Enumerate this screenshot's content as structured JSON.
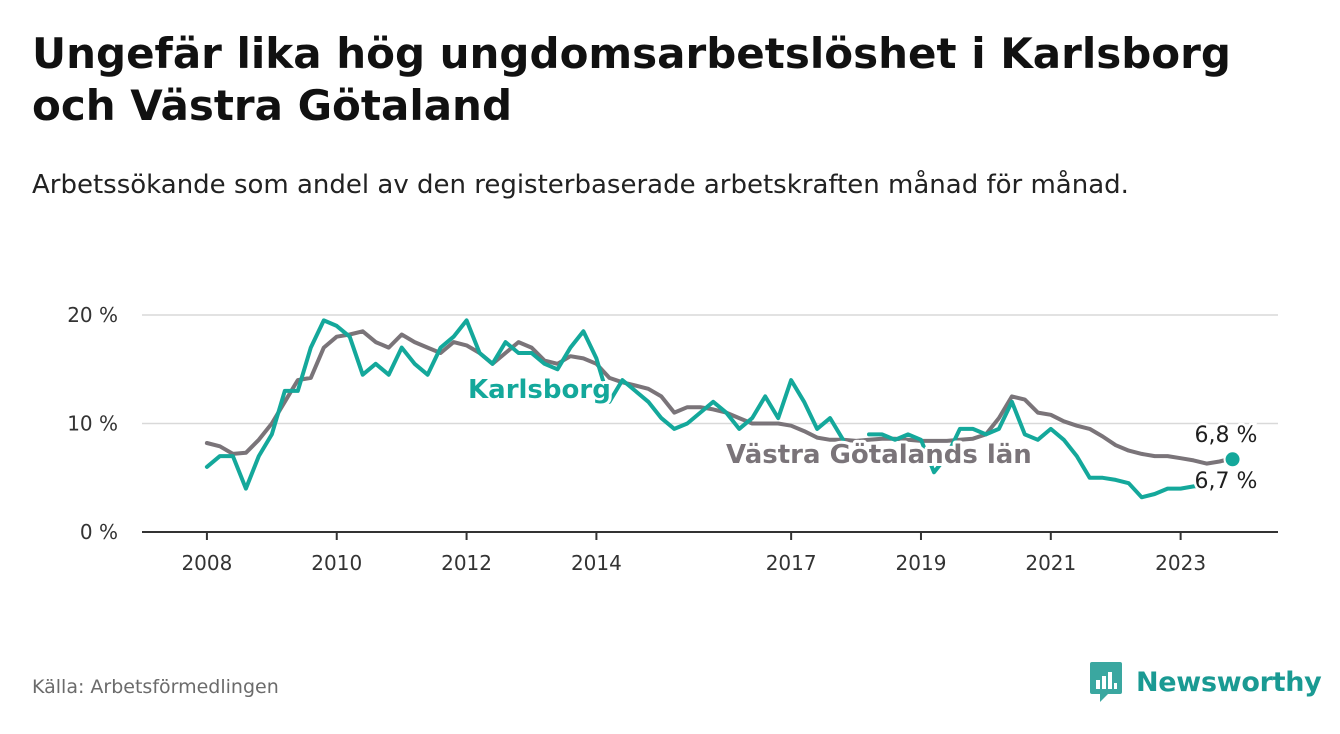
{
  "header": {
    "title": "Ungefär lika hög ungdomsarbetslöshet i Karlsborg och Västra Götaland",
    "subtitle": "Arbetssökande som andel av den registerbaserade arbetskraften månad för månad."
  },
  "footer": {
    "source": "Källa: Arbetsförmedlingen",
    "brand": "Newsworthy"
  },
  "colors": {
    "karlsborg": "#14a89b",
    "vastra": "#7a7479",
    "grid": "#d9d9d9",
    "axis": "#333333"
  },
  "chart_data": {
    "type": "line",
    "title": "Ungefär lika hög ungdomsarbetslöshet i Karlsborg och Västra Götaland",
    "xlabel": "",
    "ylabel": "",
    "xlim": [
      2007.0,
      2024.5
    ],
    "ylim": [
      0,
      20
    ],
    "y_ticks": [
      0,
      10,
      20
    ],
    "y_tick_labels": [
      "0 %",
      "10 %",
      "20 %"
    ],
    "x_ticks": [
      2008,
      2010,
      2012,
      2014,
      2017,
      2019,
      2021,
      2023
    ],
    "x_tick_labels": [
      "2008",
      "2010",
      "2012",
      "2014",
      "2017",
      "2019",
      "2021",
      "2023"
    ],
    "grid": true,
    "legend": "inline labels",
    "series": [
      {
        "name": "Västra Götalands län",
        "label": "Västra Götalands län",
        "color": "#7a7479",
        "end_label": "6,8 %",
        "x": [
          2008.0,
          2008.2,
          2008.4,
          2008.6,
          2008.8,
          2009.0,
          2009.2,
          2009.4,
          2009.6,
          2009.8,
          2010.0,
          2010.2,
          2010.4,
          2010.6,
          2010.8,
          2011.0,
          2011.2,
          2011.4,
          2011.6,
          2011.8,
          2012.0,
          2012.2,
          2012.4,
          2012.6,
          2012.8,
          2013.0,
          2013.2,
          2013.4,
          2013.6,
          2013.8,
          2014.0,
          2014.2,
          2014.4,
          2014.6,
          2014.8,
          2015.0,
          2015.2,
          2015.4,
          2015.6,
          2015.8,
          2016.0,
          2016.2,
          2016.4,
          2016.6,
          2016.8,
          2017.0,
          2017.2,
          2017.4,
          2017.6,
          2017.8,
          2018.0,
          2018.2,
          2018.4,
          2018.6,
          2018.8,
          2019.0,
          2019.2,
          2019.4,
          2019.6,
          2019.8,
          2020.0,
          2020.2,
          2020.4,
          2020.6,
          2020.8,
          2021.0,
          2021.2,
          2021.4,
          2021.6,
          2021.8,
          2022.0,
          2022.2,
          2022.4,
          2022.6,
          2022.8,
          2023.0,
          2023.2,
          2023.4,
          2023.6,
          2023.8
        ],
        "values": [
          8.2,
          7.9,
          7.2,
          7.3,
          8.5,
          10.0,
          12.0,
          14.0,
          14.2,
          17.0,
          18.0,
          18.2,
          18.5,
          17.5,
          17.0,
          18.2,
          17.5,
          17.0,
          16.5,
          17.5,
          17.2,
          16.5,
          15.5,
          16.5,
          17.5,
          17.0,
          15.8,
          15.5,
          16.2,
          16.0,
          15.5,
          14.2,
          13.8,
          13.5,
          13.2,
          12.5,
          11.0,
          11.5,
          11.5,
          11.3,
          11.0,
          10.5,
          10.0,
          10.0,
          10.0,
          9.8,
          9.3,
          8.7,
          8.5,
          8.5,
          8.4,
          8.5,
          8.6,
          8.6,
          8.5,
          8.4,
          8.4,
          8.4,
          8.5,
          8.6,
          9.0,
          10.5,
          12.5,
          12.2,
          11.0,
          10.8,
          10.2,
          9.8,
          9.5,
          8.8,
          8.0,
          7.5,
          7.2,
          7.0,
          7.0,
          6.8,
          6.6,
          6.3,
          6.5,
          6.8
        ]
      },
      {
        "name": "Karlsborg",
        "label": "Karlsborg",
        "color": "#14a89b",
        "end_label": "6,7 %",
        "x": [
          2008.0,
          2008.2,
          2008.4,
          2008.6,
          2008.8,
          2009.0,
          2009.2,
          2009.4,
          2009.6,
          2009.8,
          2010.0,
          2010.2,
          2010.4,
          2010.6,
          2010.8,
          2011.0,
          2011.2,
          2011.4,
          2011.6,
          2011.8,
          2012.0,
          2012.2,
          2012.4,
          2012.6,
          2012.8,
          2013.0,
          2013.2,
          2013.4,
          2013.6,
          2013.8,
          2014.0,
          2014.2,
          2014.4,
          2014.6,
          2014.8,
          2015.0,
          2015.2,
          2015.4,
          2015.6,
          2015.8,
          2016.0,
          2016.2,
          2016.4,
          2016.6,
          2016.8,
          2017.0,
          2017.2,
          2017.4,
          2017.6,
          2017.8,
          2018.0,
          2018.2,
          2018.4,
          2018.6,
          2018.8,
          2019.0,
          2019.2,
          2019.4,
          2019.6,
          2019.8,
          2020.0,
          2020.2,
          2020.4,
          2020.6,
          2020.8,
          2021.0,
          2021.2,
          2021.4,
          2021.6,
          2021.8,
          2022.0,
          2022.2,
          2022.4,
          2022.6,
          2022.8,
          2023.0,
          2023.2,
          2023.4,
          2023.6,
          2023.8
        ],
        "values": [
          6.0,
          7.0,
          7.0,
          4.0,
          7.0,
          9.0,
          13.0,
          13.0,
          17.0,
          19.5,
          19.0,
          18.0,
          14.5,
          15.5,
          14.5,
          17.0,
          15.5,
          14.5,
          17.0,
          18.0,
          19.5,
          16.5,
          15.5,
          17.5,
          16.5,
          16.5,
          15.5,
          15.0,
          17.0,
          18.5,
          16.0,
          12.0,
          14.0,
          13.0,
          12.0,
          10.5,
          9.5,
          10.0,
          11.0,
          12.0,
          11.0,
          9.5,
          10.5,
          12.5,
          10.5,
          14.0,
          12.0,
          9.5,
          10.5,
          8.5,
          null,
          9.0,
          9.0,
          8.5,
          9.0,
          8.5,
          5.5,
          7.0,
          9.5,
          9.5,
          9.0,
          9.5,
          12.0,
          9.0,
          8.5,
          9.5,
          8.5,
          7.0,
          5.0,
          5.0,
          4.8,
          4.5,
          3.2,
          3.5,
          4.0,
          4.0,
          4.2,
          4.3,
          null,
          6.7
        ]
      }
    ]
  }
}
